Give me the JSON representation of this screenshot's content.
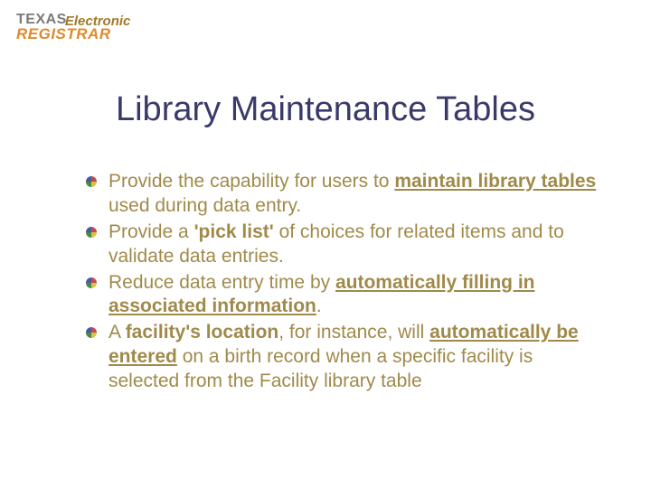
{
  "logo": {
    "texas": "TEXAS",
    "electronic": "Electronic",
    "registrar": "REGISTRAR",
    "color_texas": "#7a7a7a",
    "color_electronic": "#a07a2a",
    "color_registrar": "#e08a2a"
  },
  "title": {
    "text": "Library Maintenance Tables",
    "color": "#3a3a6a",
    "fontsize": 38
  },
  "body": {
    "text_color": "#a08a4a",
    "fontsize": 21
  },
  "bullet_icon": {
    "colors": [
      "#c54a4a",
      "#d9c24a",
      "#4a8a3a",
      "#4a5aa0"
    ]
  },
  "bullets": [
    {
      "segments": [
        {
          "t": "Provide the capability for users to "
        },
        {
          "t": "maintain library tables",
          "strong": true,
          "uline": true
        },
        {
          "t": " used during data entry."
        }
      ]
    },
    {
      "segments": [
        {
          "t": "Provide a "
        },
        {
          "t": "'pick list'",
          "strong": true
        },
        {
          "t": " of choices for related items and to validate data entries."
        }
      ]
    },
    {
      "segments": [
        {
          "t": "Reduce data entry time by "
        },
        {
          "t": "automatically filling in associated information",
          "strong": true,
          "uline": true
        },
        {
          "t": "."
        }
      ]
    },
    {
      "segments": [
        {
          "t": "A "
        },
        {
          "t": "facility's location",
          "strong": true
        },
        {
          "t": ", for instance, will "
        },
        {
          "t": "automatically be entered",
          "strong": true,
          "uline": true
        },
        {
          "t": " on a birth record when a specific facility is selected from the Facility library table"
        }
      ]
    }
  ]
}
